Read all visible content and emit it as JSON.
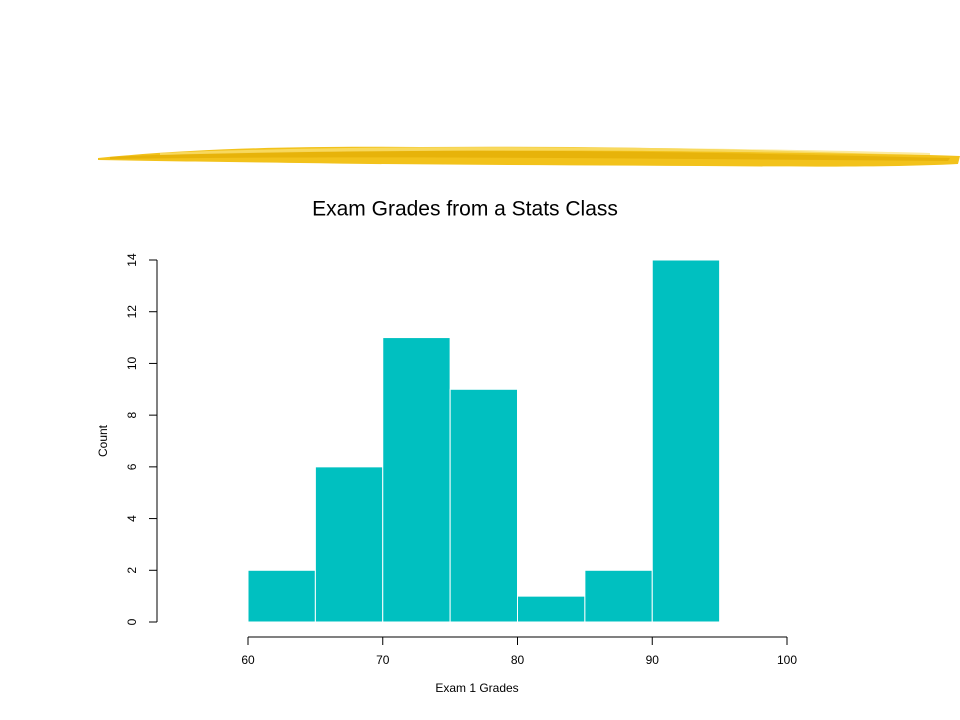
{
  "chart_data": {
    "type": "histogram",
    "title": "Exam Grades from a Stats Class",
    "x_label": "Exam 1 Grades",
    "y_label": "Count",
    "bins": [
      60,
      65,
      70,
      75,
      80,
      85,
      90,
      95
    ],
    "values": [
      2,
      6,
      11,
      9,
      1,
      2,
      14
    ],
    "color": "#00c0c0",
    "xlim": [
      60,
      100
    ],
    "xticks": [
      60,
      70,
      80,
      90,
      100
    ],
    "ylim": [
      0,
      14
    ],
    "yticks": [
      0,
      2,
      4,
      6,
      8,
      10,
      12,
      14
    ]
  }
}
